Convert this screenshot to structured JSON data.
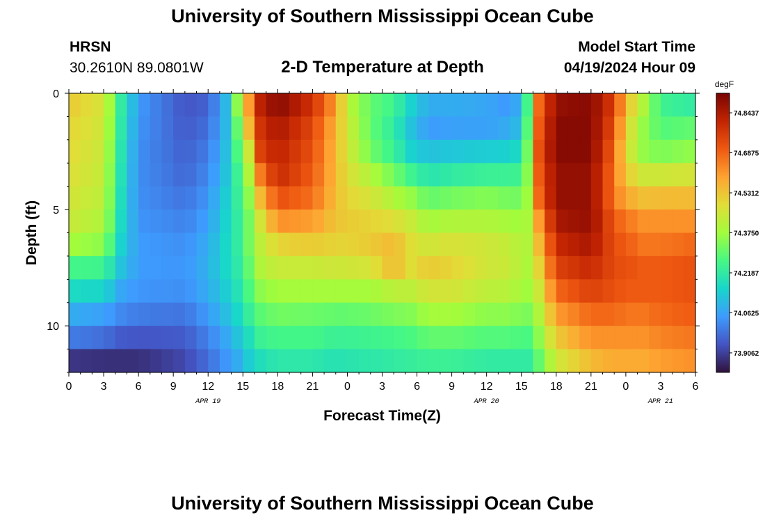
{
  "header": {
    "title": "University of Southern Mississippi Ocean Cube",
    "station": "HRSN",
    "coordinates": "30.2610N  89.0801W",
    "subtitle": "2-D Temperature at Depth",
    "model_start_label": "Model Start Time",
    "model_start_value": "04/19/2024 Hour 09"
  },
  "footer": {
    "title": "University of Southern Mississippi Ocean Cube"
  },
  "chart_data": {
    "type": "heatmap",
    "title": "2-D Temperature at Depth",
    "xlabel": "Forecast Time(Z)",
    "ylabel": "Depth (ft)",
    "x_ticks": [
      "0",
      "3",
      "6",
      "9",
      "12",
      "15",
      "18",
      "21",
      "0",
      "3",
      "6",
      "9",
      "12",
      "15",
      "18",
      "21",
      "0",
      "3",
      "6"
    ],
    "x_range_hours": [
      0,
      54
    ],
    "date_labels": [
      {
        "hour": 12,
        "label": "APR 19"
      },
      {
        "hour": 36,
        "label": "APR 20"
      },
      {
        "hour": 51,
        "label": "APR 21"
      }
    ],
    "y_ticks": [
      "0",
      "5",
      "10"
    ],
    "y_range_ft": [
      0,
      12
    ],
    "y_reversed": true,
    "colorbar": {
      "unit": "degF",
      "min": 73.83,
      "max": 74.92,
      "tick_labels": [
        "74.8437",
        "74.6875",
        "74.5312",
        "74.3750",
        "74.2187",
        "74.0625",
        "73.9062"
      ],
      "tick_values": [
        74.8437,
        74.6875,
        74.5312,
        74.375,
        74.2187,
        74.0625,
        73.9062
      ],
      "colormap": [
        "#30123b",
        "#4454c4",
        "#3e9bfe",
        "#18d6cb",
        "#46f884",
        "#a2fc3c",
        "#e1dd37",
        "#fea331",
        "#ef5911",
        "#c22402",
        "#7a0403"
      ]
    },
    "depth_layers_ft": [
      0.5,
      1.5,
      2.5,
      3.5,
      4.5,
      5.5,
      6.5,
      7.5,
      8.5,
      9.5,
      10.5,
      11.5
    ],
    "temperature_keyframes": [
      {
        "hour": 0,
        "values": [
          74.52,
          74.5,
          74.49,
          74.48,
          74.46,
          74.44,
          74.38,
          74.26,
          74.17,
          74.08,
          74.0,
          73.89
        ]
      },
      {
        "hour": 3,
        "values": [
          74.46,
          74.45,
          74.44,
          74.43,
          74.42,
          74.4,
          74.35,
          74.25,
          74.16,
          74.06,
          73.98,
          73.88
        ]
      },
      {
        "hour": 4.5,
        "values": [
          74.22,
          74.21,
          74.2,
          74.19,
          74.18,
          74.17,
          74.15,
          74.12,
          74.07,
          74.02,
          73.95,
          73.88
        ]
      },
      {
        "hour": 6,
        "values": [
          74.05,
          74.04,
          74.03,
          74.03,
          74.03,
          74.04,
          74.05,
          74.05,
          74.04,
          74.0,
          73.94,
          73.88
        ]
      },
      {
        "hour": 10,
        "values": [
          73.94,
          73.95,
          73.96,
          73.97,
          73.99,
          74.01,
          74.03,
          74.04,
          74.03,
          73.99,
          73.95,
          73.92
        ]
      },
      {
        "hour": 12,
        "values": [
          73.96,
          73.98,
          74.0,
          74.02,
          74.04,
          74.06,
          74.08,
          74.09,
          74.08,
          74.05,
          74.01,
          73.98
        ]
      },
      {
        "hour": 13.5,
        "values": [
          74.1,
          74.1,
          74.11,
          74.12,
          74.14,
          74.15,
          74.16,
          74.16,
          74.14,
          74.11,
          74.07,
          74.04
        ]
      },
      {
        "hour": 14.5,
        "values": [
          74.35,
          74.3,
          74.27,
          74.24,
          74.23,
          74.22,
          74.22,
          74.21,
          74.19,
          74.16,
          74.12,
          74.08
        ]
      },
      {
        "hour": 15.5,
        "values": [
          74.6,
          74.55,
          74.45,
          74.4,
          74.35,
          74.32,
          74.32,
          74.3,
          74.27,
          74.23,
          74.18,
          74.14
        ]
      },
      {
        "hour": 16.5,
        "values": [
          74.82,
          74.78,
          74.75,
          74.65,
          74.55,
          74.46,
          74.42,
          74.4,
          74.35,
          74.29,
          74.24,
          74.18
        ]
      },
      {
        "hour": 18,
        "values": [
          74.9,
          74.85,
          74.82,
          74.8,
          74.72,
          74.62,
          74.5,
          74.44,
          74.38,
          74.32,
          74.26,
          74.21
        ]
      },
      {
        "hour": 21,
        "values": [
          74.78,
          74.74,
          74.72,
          74.7,
          74.67,
          74.6,
          74.52,
          74.44,
          74.38,
          74.31,
          74.26,
          74.21
        ]
      },
      {
        "hour": 23,
        "values": [
          74.6,
          74.56,
          74.55,
          74.55,
          74.54,
          74.53,
          74.5,
          74.45,
          74.38,
          74.3,
          74.24,
          74.19
        ]
      },
      {
        "hour": 24,
        "values": [
          74.42,
          74.45,
          74.46,
          74.48,
          74.5,
          74.52,
          74.5,
          74.45,
          74.38,
          74.3,
          74.24,
          74.2
        ]
      },
      {
        "hour": 26,
        "values": [
          74.3,
          74.3,
          74.32,
          74.4,
          74.46,
          74.5,
          74.52,
          74.46,
          74.38,
          74.31,
          74.25,
          74.21
        ]
      },
      {
        "hour": 28,
        "values": [
          74.25,
          74.22,
          74.24,
          74.32,
          74.4,
          74.48,
          74.55,
          74.55,
          74.42,
          74.33,
          74.26,
          74.22
        ]
      },
      {
        "hour": 29.5,
        "values": [
          74.15,
          74.12,
          74.15,
          74.25,
          74.36,
          74.44,
          74.48,
          74.48,
          74.42,
          74.34,
          74.27,
          74.23
        ]
      },
      {
        "hour": 31,
        "values": [
          74.08,
          74.05,
          74.12,
          74.2,
          74.3,
          74.38,
          74.45,
          74.52,
          74.46,
          74.38,
          74.3,
          74.24
        ]
      },
      {
        "hour": 33,
        "values": [
          74.08,
          74.06,
          74.13,
          74.22,
          74.32,
          74.4,
          74.47,
          74.5,
          74.46,
          74.38,
          74.3,
          74.24
        ]
      },
      {
        "hour": 36,
        "values": [
          74.07,
          74.06,
          74.14,
          74.24,
          74.34,
          74.4,
          74.45,
          74.45,
          74.42,
          74.35,
          74.28,
          74.22
        ]
      },
      {
        "hour": 38,
        "values": [
          74.04,
          74.08,
          74.15,
          74.24,
          74.32,
          74.38,
          74.43,
          74.44,
          74.41,
          74.35,
          74.28,
          74.22
        ]
      },
      {
        "hour": 39,
        "values": [
          74.1,
          74.12,
          74.18,
          74.25,
          74.32,
          74.37,
          74.4,
          74.4,
          74.38,
          74.33,
          74.27,
          74.22
        ]
      },
      {
        "hour": 39.8,
        "values": [
          74.35,
          74.38,
          74.4,
          74.4,
          74.4,
          74.4,
          74.4,
          74.39,
          74.37,
          74.33,
          74.27,
          74.22
        ]
      },
      {
        "hour": 40.5,
        "values": [
          74.68,
          74.7,
          74.72,
          74.7,
          74.68,
          74.6,
          74.55,
          74.5,
          74.45,
          74.4,
          74.35,
          74.3
        ]
      },
      {
        "hour": 42,
        "values": [
          74.88,
          74.9,
          74.9,
          74.88,
          74.88,
          74.85,
          74.8,
          74.75,
          74.68,
          74.6,
          74.52,
          74.45
        ]
      },
      {
        "hour": 45,
        "values": [
          74.9,
          74.9,
          74.9,
          74.88,
          74.88,
          74.88,
          74.85,
          74.8,
          74.75,
          74.68,
          74.62,
          74.55
        ]
      },
      {
        "hour": 47,
        "values": [
          74.75,
          74.72,
          74.68,
          74.66,
          74.66,
          74.7,
          74.72,
          74.73,
          74.72,
          74.68,
          74.62,
          74.58
        ]
      },
      {
        "hour": 48,
        "values": [
          74.55,
          74.5,
          74.48,
          74.52,
          74.58,
          74.66,
          74.7,
          74.72,
          74.7,
          74.66,
          74.62,
          74.58
        ]
      },
      {
        "hour": 49.5,
        "values": [
          74.4,
          74.36,
          74.36,
          74.45,
          74.54,
          74.62,
          74.66,
          74.7,
          74.7,
          74.66,
          74.62,
          74.58
        ]
      },
      {
        "hour": 51,
        "values": [
          74.25,
          74.28,
          74.33,
          74.45,
          74.55,
          74.62,
          74.66,
          74.7,
          74.7,
          74.68,
          74.64,
          74.6
        ]
      },
      {
        "hour": 54,
        "values": [
          74.22,
          74.3,
          74.36,
          74.46,
          74.55,
          74.62,
          74.68,
          74.72,
          74.72,
          74.7,
          74.66,
          74.62
        ]
      }
    ]
  }
}
